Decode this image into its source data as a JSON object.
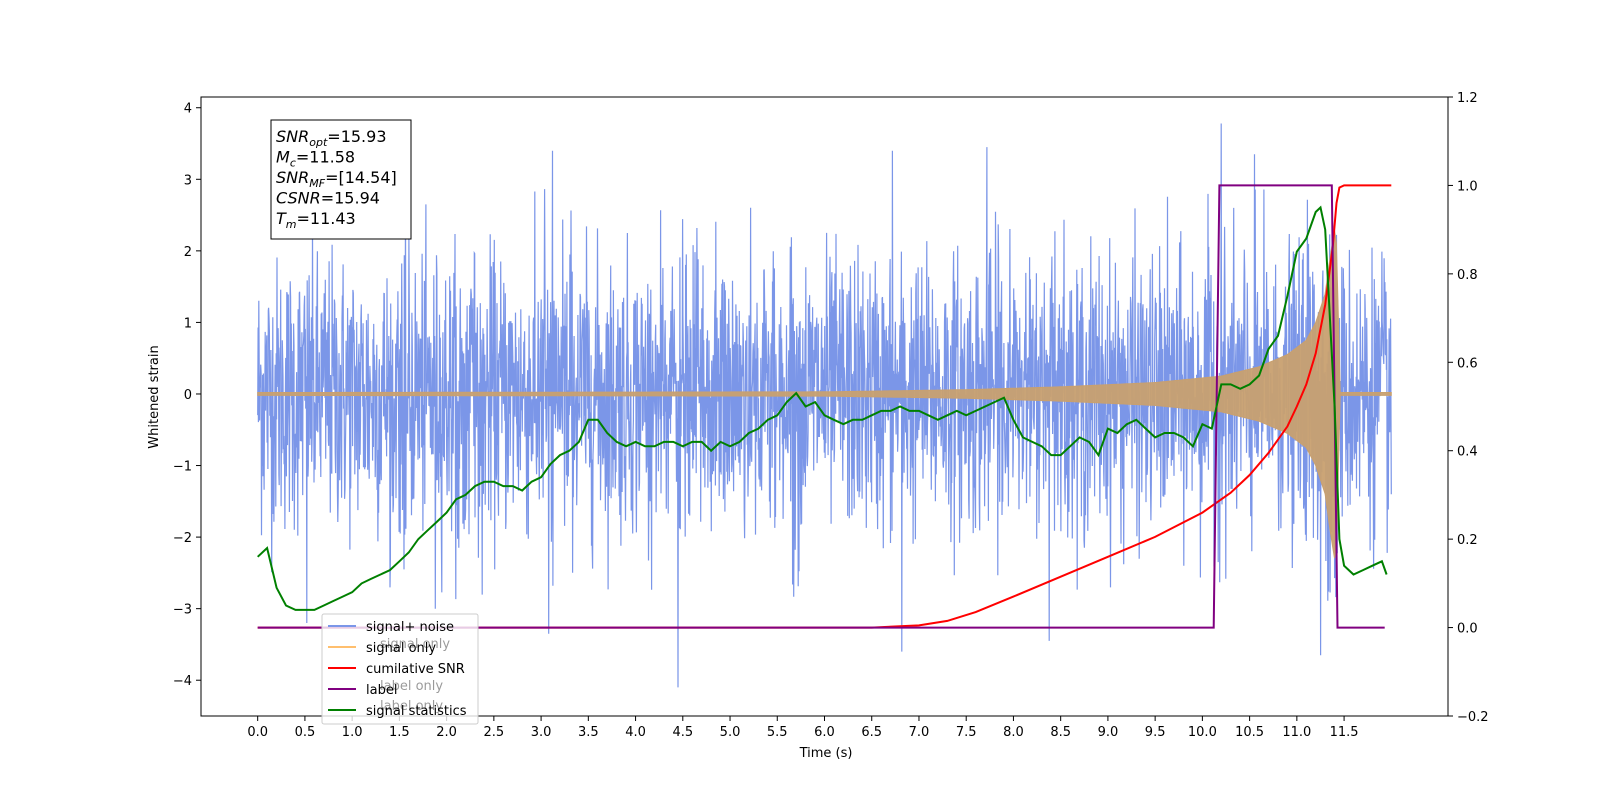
{
  "chart_data": {
    "type": "line",
    "xlabel": "Time (s)",
    "ylabel": "Whitened strain",
    "xlim": [
      -0.6,
      12.6
    ],
    "ylim": [
      -4.5,
      4.15
    ],
    "y2lim": [
      -0.2,
      1.2
    ],
    "x_ticks": [
      "0.0",
      "0.5",
      "1.0",
      "1.5",
      "2.0",
      "2.5",
      "3.0",
      "3.5",
      "4.0",
      "4.5",
      "5.0",
      "5.5",
      "6.0",
      "6.5",
      "7.0",
      "7.5",
      "8.0",
      "8.5",
      "9.0",
      "9.5",
      "10.0",
      "10.5",
      "11.0",
      "11.5"
    ],
    "y_ticks": [
      "4",
      "3",
      "2",
      "1",
      "0",
      "−1",
      "−2",
      "−3",
      "−4"
    ],
    "y2_ticks": [
      "1.2",
      "1.0",
      "0.8",
      "0.6",
      "0.4",
      "0.2",
      "0.0",
      "−0.2"
    ],
    "annotation": [
      {
        "name": "SNR",
        "sub": "opt",
        "value": "=15.93"
      },
      {
        "name": "M",
        "sub": "c",
        "value": "=11.58"
      },
      {
        "name": "SNR",
        "sub": "MF",
        "value": "=[14.54]"
      },
      {
        "name": "CSNR",
        "sub": "",
        "value": "=15.94"
      },
      {
        "name": "T",
        "sub": "m",
        "value": "=11.43"
      }
    ],
    "legend_position": "lower-left",
    "legend": [
      {
        "label": "signal+ noise",
        "color": "#7b96e8"
      },
      {
        "label": "signal only",
        "color": "#ffbf6e"
      },
      {
        "label": "cumilative SNR",
        "color": "#ff0000"
      },
      {
        "label": "label",
        "color": "#800080"
      },
      {
        "label": "signal statistics",
        "color": "#008000"
      }
    ],
    "hidden_label_text": [
      "signal only",
      "label only",
      "label only"
    ],
    "series": [
      {
        "name": "signal+ noise",
        "axis": "left",
        "color": "#7b96e8",
        "x_range": [
          0.0,
          12.0
        ],
        "amplitude_std": 0.95,
        "notable_points": [
          [
            0.52,
            -3.2
          ],
          [
            1.88,
            -3.0
          ],
          [
            3.08,
            -3.35
          ],
          [
            4.45,
            -4.1
          ],
          [
            6.82,
            -3.6
          ],
          [
            8.38,
            -3.45
          ],
          [
            10.2,
            3.78
          ],
          [
            11.25,
            3.5
          ],
          [
            11.25,
            -3.65
          ],
          [
            3.12,
            3.4
          ],
          [
            6.72,
            3.4
          ],
          [
            7.72,
            3.45
          ],
          [
            10.55,
            3.35
          ]
        ]
      },
      {
        "name": "signal only",
        "axis": "left",
        "color": "#c8a070",
        "envelope": [
          [
            0.0,
            0.02
          ],
          [
            6.0,
            0.03
          ],
          [
            7.5,
            0.06
          ],
          [
            8.5,
            0.1
          ],
          [
            9.5,
            0.16
          ],
          [
            10.2,
            0.25
          ],
          [
            10.6,
            0.38
          ],
          [
            10.9,
            0.55
          ],
          [
            11.1,
            0.75
          ],
          [
            11.2,
            1.0
          ],
          [
            11.3,
            1.4
          ],
          [
            11.35,
            1.9
          ],
          [
            11.4,
            2.3
          ],
          [
            11.43,
            2.0
          ],
          [
            11.45,
            0.02
          ],
          [
            12.0,
            0.02
          ]
        ]
      },
      {
        "name": "cumilative SNR",
        "axis": "right",
        "color": "#ff0000",
        "x": [
          0.0,
          6.5,
          7.0,
          7.3,
          7.6,
          8.0,
          8.5,
          9.0,
          9.5,
          10.0,
          10.3,
          10.5,
          10.7,
          10.9,
          11.0,
          11.1,
          11.2,
          11.3,
          11.38,
          11.42,
          11.45,
          11.5,
          12.0
        ],
        "y": [
          0.0,
          0.0,
          0.005,
          0.015,
          0.035,
          0.07,
          0.115,
          0.16,
          0.205,
          0.26,
          0.305,
          0.345,
          0.395,
          0.455,
          0.5,
          0.55,
          0.62,
          0.73,
          0.86,
          0.96,
          0.995,
          1.0,
          1.0
        ]
      },
      {
        "name": "label",
        "axis": "right",
        "color": "#800080",
        "x": [
          0.0,
          10.12,
          10.18,
          11.37,
          11.43,
          11.93
        ],
        "y": [
          0.0,
          0.0,
          1.0,
          1.0,
          0.0,
          0.0
        ]
      },
      {
        "name": "signal statistics",
        "axis": "right",
        "color": "#008000",
        "x": [
          0.0,
          0.1,
          0.2,
          0.3,
          0.4,
          0.5,
          0.6,
          0.7,
          0.8,
          0.9,
          1.0,
          1.1,
          1.2,
          1.3,
          1.4,
          1.5,
          1.6,
          1.7,
          1.8,
          1.9,
          2.0,
          2.1,
          2.2,
          2.3,
          2.4,
          2.5,
          2.6,
          2.7,
          2.8,
          2.9,
          3.0,
          3.1,
          3.2,
          3.3,
          3.4,
          3.5,
          3.6,
          3.7,
          3.8,
          3.9,
          4.0,
          4.1,
          4.2,
          4.3,
          4.4,
          4.5,
          4.6,
          4.7,
          4.8,
          4.9,
          5.0,
          5.1,
          5.2,
          5.3,
          5.4,
          5.5,
          5.6,
          5.7,
          5.8,
          5.9,
          6.0,
          6.1,
          6.2,
          6.3,
          6.4,
          6.5,
          6.6,
          6.7,
          6.8,
          6.9,
          7.0,
          7.1,
          7.2,
          7.3,
          7.4,
          7.5,
          7.6,
          7.7,
          7.8,
          7.9,
          8.0,
          8.1,
          8.2,
          8.3,
          8.4,
          8.5,
          8.6,
          8.7,
          8.8,
          8.9,
          9.0,
          9.1,
          9.2,
          9.3,
          9.4,
          9.5,
          9.6,
          9.7,
          9.8,
          9.9,
          10.0,
          10.1,
          10.2,
          10.3,
          10.4,
          10.5,
          10.6,
          10.7,
          10.8,
          10.9,
          11.0,
          11.1,
          11.2,
          11.25,
          11.3,
          11.4,
          11.45,
          11.5,
          11.6,
          11.7,
          11.8,
          11.9,
          11.95
        ],
        "y": [
          0.16,
          0.18,
          0.09,
          0.05,
          0.04,
          0.04,
          0.04,
          0.05,
          0.06,
          0.07,
          0.08,
          0.1,
          0.11,
          0.12,
          0.13,
          0.15,
          0.17,
          0.2,
          0.22,
          0.24,
          0.26,
          0.29,
          0.3,
          0.32,
          0.33,
          0.33,
          0.32,
          0.32,
          0.31,
          0.33,
          0.34,
          0.37,
          0.39,
          0.4,
          0.42,
          0.47,
          0.47,
          0.44,
          0.42,
          0.41,
          0.42,
          0.41,
          0.41,
          0.42,
          0.42,
          0.41,
          0.42,
          0.42,
          0.4,
          0.42,
          0.41,
          0.42,
          0.44,
          0.45,
          0.47,
          0.48,
          0.51,
          0.53,
          0.5,
          0.51,
          0.48,
          0.47,
          0.46,
          0.47,
          0.47,
          0.48,
          0.49,
          0.49,
          0.5,
          0.49,
          0.49,
          0.48,
          0.47,
          0.48,
          0.49,
          0.48,
          0.49,
          0.5,
          0.51,
          0.52,
          0.47,
          0.43,
          0.42,
          0.41,
          0.39,
          0.39,
          0.41,
          0.43,
          0.42,
          0.39,
          0.45,
          0.44,
          0.46,
          0.47,
          0.45,
          0.43,
          0.44,
          0.44,
          0.43,
          0.41,
          0.46,
          0.45,
          0.55,
          0.55,
          0.54,
          0.55,
          0.57,
          0.63,
          0.66,
          0.75,
          0.85,
          0.88,
          0.94,
          0.95,
          0.9,
          0.5,
          0.2,
          0.14,
          0.12,
          0.13,
          0.14,
          0.15,
          0.12
        ]
      }
    ]
  }
}
